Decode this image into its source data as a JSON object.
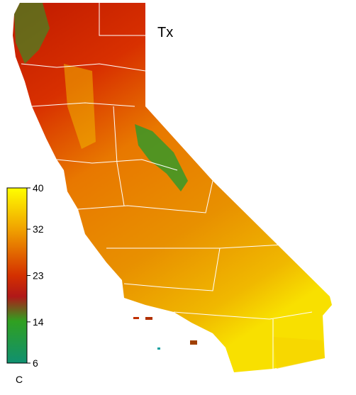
{
  "title": "Tx",
  "colorbar": {
    "lim": [
      6,
      40
    ],
    "ticks": [
      40,
      32,
      23,
      14,
      6
    ],
    "unit": "C"
  }
}
